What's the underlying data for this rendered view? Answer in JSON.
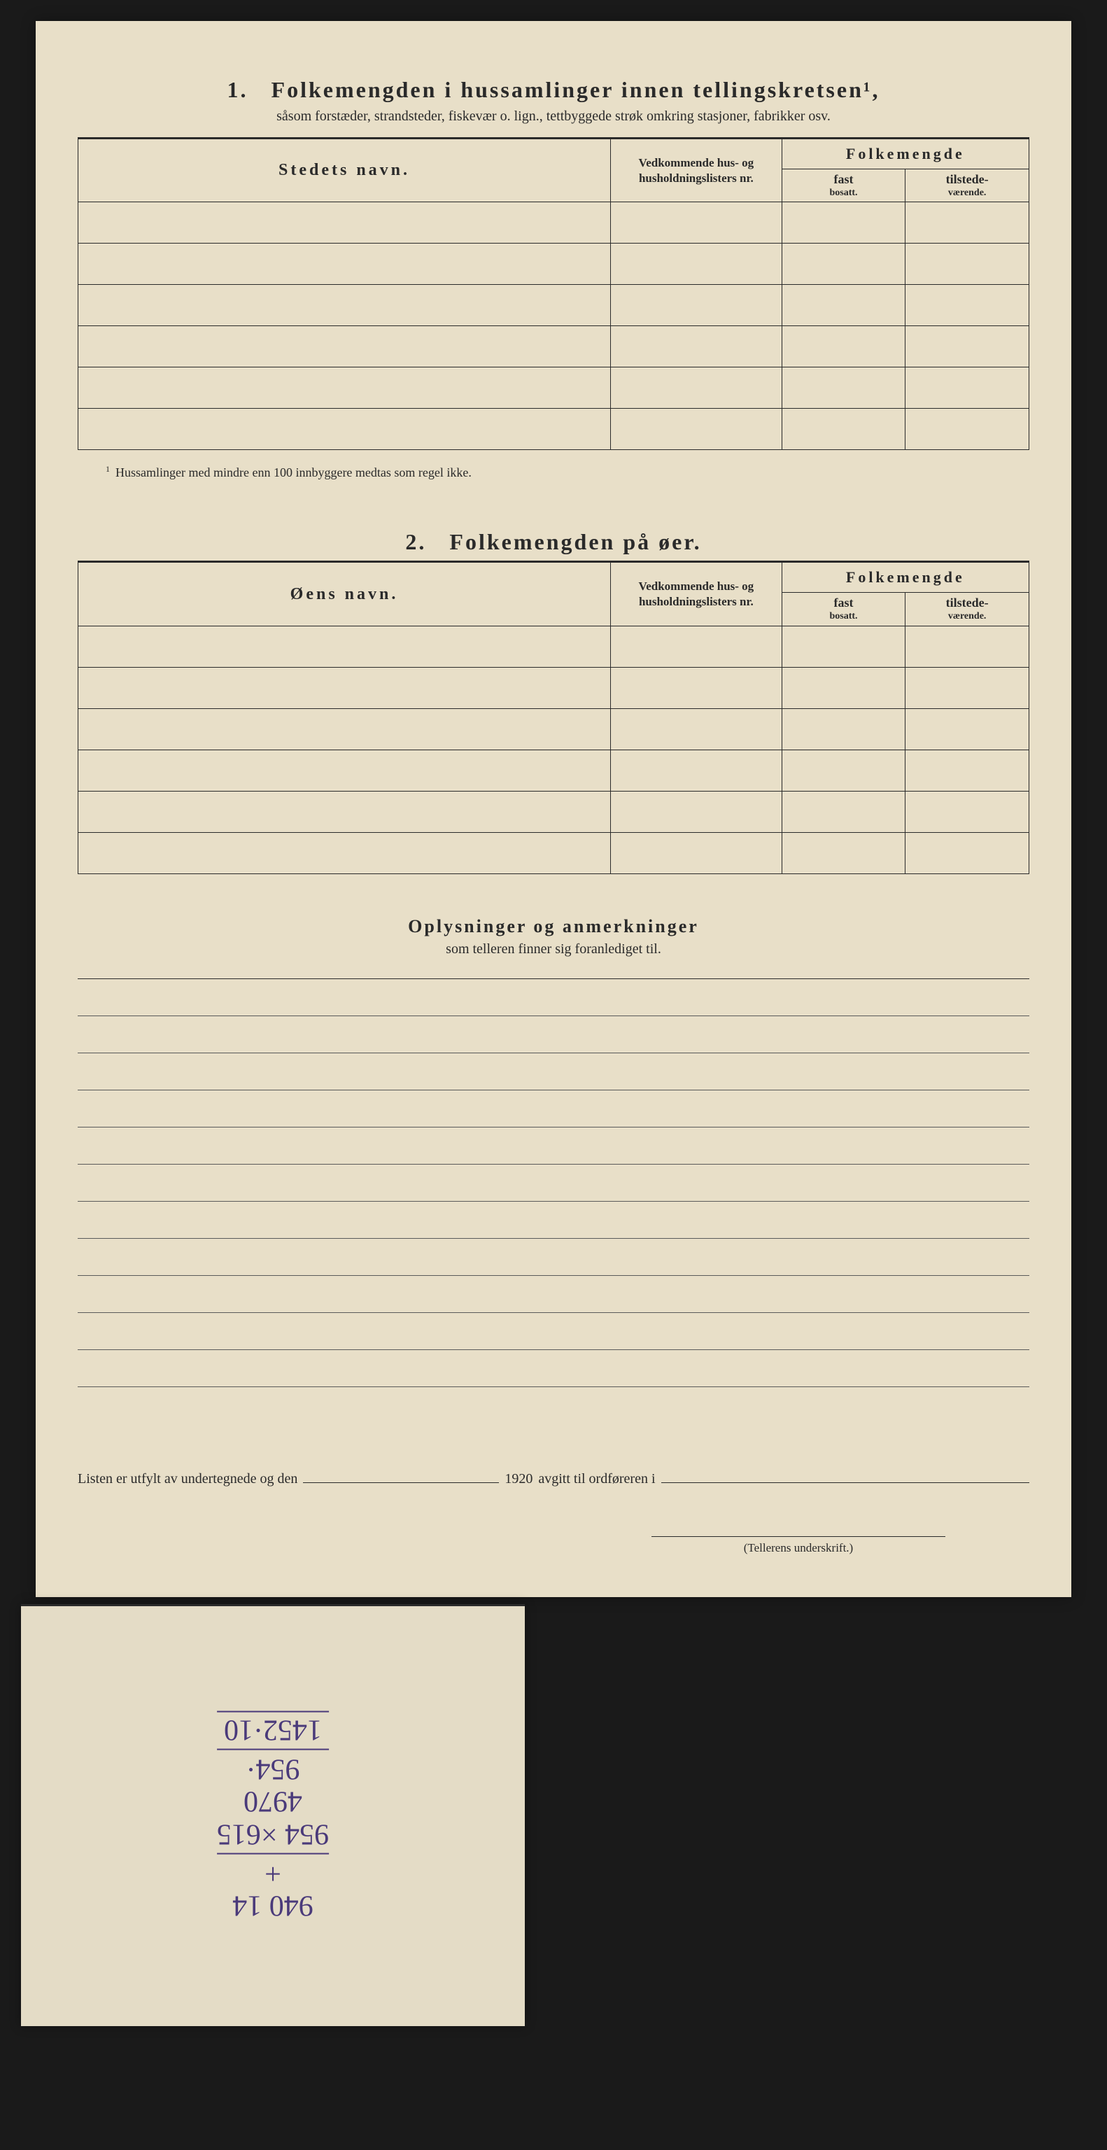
{
  "section1": {
    "number": "1.",
    "title": "Folkemengden i hussamlinger innen tellingskretsen¹,",
    "subtitle": "såsom forstæder, strandsteder, fiskevær o. lign., tettbyggede strøk omkring stasjoner, fabrikker osv.",
    "col_name": "Stedets navn.",
    "col_lists": "Vedkommende hus- og husholdningslisters nr.",
    "col_group": "Folkemengde",
    "col_fast": "fast",
    "col_fast_sub": "bosatt.",
    "col_tilst": "tilstede-",
    "col_tilst_sub": "værende.",
    "footnote": "Hussamlinger med mindre enn 100 innbyggere medtas som regel ikke.",
    "row_count": 6
  },
  "section2": {
    "number": "2.",
    "title": "Folkemengden på øer.",
    "col_name": "Øens navn.",
    "col_lists": "Vedkommende hus- og husholdningslisters nr.",
    "col_group": "Folkemengde",
    "col_fast": "fast",
    "col_fast_sub": "bosatt.",
    "col_tilst": "tilstede-",
    "col_tilst_sub": "værende.",
    "row_count": 6
  },
  "section3": {
    "title": "Oplysninger og anmerkninger",
    "subtitle": "som telleren finner sig foranlediget til.",
    "line_count": 11
  },
  "signoff": {
    "prefix": "Listen er utfylt av undertegnede og den",
    "year": "1920",
    "middle": "avgitt til ordføreren i",
    "sig_label": "(Tellerens underskrift.)"
  },
  "scrap": {
    "lines": [
      "940 14",
      "+",
      "954 ×615",
      "4970",
      "954·",
      "1452·10"
    ]
  },
  "colors": {
    "paper": "#e8dfc8",
    "ink": "#2a2a2a",
    "handwriting": "#4a3a7a",
    "background": "#1a1a1a"
  },
  "layout": {
    "col_widths_pct": [
      56,
      18,
      13,
      13
    ]
  }
}
